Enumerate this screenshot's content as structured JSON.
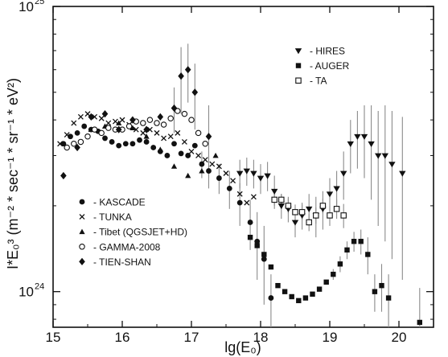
{
  "chart_data": {
    "type": "scatter",
    "xlabel": "lg(E₀)",
    "ylabel": "I*E₀³ (m⁻² * sec⁻¹ * sr⁻¹ * eV²)",
    "xlim": [
      15,
      20.5
    ],
    "ylim": [
      7.5e+23,
      1e+25
    ],
    "yscale": "log",
    "xticks": [
      "15",
      "16",
      "17",
      "18",
      "19",
      "20"
    ],
    "yticks": [
      {
        "base": "10",
        "exp": "24",
        "value": 1e+24
      },
      {
        "base": "10",
        "exp": "25",
        "value": 1e+25
      }
    ],
    "grid": false,
    "series": [
      {
        "name": "- KASCADE",
        "marker": "circle-filled",
        "points": [
          [
            15.15,
            3.3e+24
          ],
          [
            15.25,
            3.5e+24
          ],
          [
            15.35,
            3.6e+24
          ],
          [
            15.45,
            3.8e+24
          ],
          [
            15.55,
            3.7e+24
          ],
          [
            15.65,
            3.65e+24
          ],
          [
            15.75,
            3.45e+24
          ],
          [
            15.85,
            3.35e+24
          ],
          [
            15.95,
            3.25e+24
          ],
          [
            16.05,
            3.3e+24
          ],
          [
            16.15,
            3.3e+24
          ],
          [
            16.25,
            3.4e+24
          ],
          [
            16.35,
            3.35e+24
          ],
          [
            16.45,
            3.2e+24
          ],
          [
            16.55,
            3.1e+24
          ],
          [
            16.65,
            3e+24
          ],
          [
            16.75,
            3.3e+24
          ],
          [
            16.85,
            3.05e+24
          ],
          [
            16.95,
            3e+24
          ],
          [
            17.05,
            3.25e+24
          ],
          [
            17.15,
            2.8e+24
          ],
          [
            17.25,
            2.65e+24
          ],
          [
            17.4,
            2.5e+24
          ],
          [
            17.55,
            2.3e+24
          ],
          [
            17.7,
            2.05e+24
          ],
          [
            17.85,
            1.75e+24
          ],
          [
            17.95,
            1.5e+24
          ],
          [
            18.05,
            1.3e+24
          ],
          [
            18.15,
            9.5e+23
          ]
        ],
        "errors": [
          0,
          0,
          0,
          0,
          0,
          0,
          0,
          0,
          0,
          0,
          0,
          0,
          0,
          0,
          0,
          0,
          0,
          0,
          0,
          0,
          3e+23,
          3.5e+23,
          3e+23,
          3.5e+23,
          3.5e+23,
          3.5e+23,
          4e+23,
          4e+23,
          2e+23
        ]
      },
      {
        "name": "- TUNKA",
        "marker": "cross",
        "points": [
          [
            15.1,
            3.3e+24
          ],
          [
            15.2,
            3.55e+24
          ],
          [
            15.3,
            3.9e+24
          ],
          [
            15.4,
            4.1e+24
          ],
          [
            15.5,
            4.2e+24
          ],
          [
            15.6,
            4.1e+24
          ],
          [
            15.7,
            4.05e+24
          ],
          [
            15.8,
            3.9e+24
          ],
          [
            15.9,
            3.95e+24
          ],
          [
            16.0,
            4e+24
          ],
          [
            16.1,
            3.85e+24
          ],
          [
            16.2,
            3.7e+24
          ],
          [
            16.3,
            3.6e+24
          ],
          [
            16.4,
            3.7e+24
          ],
          [
            16.5,
            3.6e+24
          ],
          [
            16.6,
            3.45e+24
          ],
          [
            16.7,
            3.5e+24
          ],
          [
            16.8,
            3.6e+24
          ],
          [
            16.9,
            3.35e+24
          ],
          [
            17.0,
            3.1e+24
          ],
          [
            17.1,
            3e+24
          ],
          [
            17.2,
            2.9e+24
          ],
          [
            17.3,
            2.8e+24
          ],
          [
            17.4,
            2.75e+24
          ],
          [
            17.5,
            2.6e+24
          ],
          [
            17.6,
            2.45e+24
          ],
          [
            17.7,
            2.2e+24
          ],
          [
            17.8,
            2.05e+24
          ],
          [
            17.9,
            2.15e+24
          ]
        ]
      },
      {
        "name": "- Tibet (QGSJET+HD)",
        "marker": "triangle-up-filled",
        "points": [
          [
            15.55,
            3.7e+24
          ],
          [
            15.75,
            3.8e+24
          ],
          [
            15.95,
            3.9e+24
          ],
          [
            16.15,
            3.75e+24
          ],
          [
            16.35,
            3.5e+24
          ],
          [
            16.55,
            3.15e+24
          ],
          [
            16.75,
            2.75e+24
          ],
          [
            16.95,
            2.55e+24
          ],
          [
            17.15,
            2.65e+24
          ],
          [
            17.35,
            3e+24
          ]
        ]
      },
      {
        "name": "- GAMMA-2008",
        "marker": "circle-open",
        "points": [
          [
            15.2,
            3.2e+24
          ],
          [
            15.3,
            3.3e+24
          ],
          [
            15.4,
            3.35e+24
          ],
          [
            15.5,
            3.5e+24
          ],
          [
            15.6,
            3.7e+24
          ],
          [
            15.7,
            3.6e+24
          ],
          [
            15.8,
            3.75e+24
          ],
          [
            15.9,
            3.7e+24
          ],
          [
            16.0,
            3.7e+24
          ],
          [
            16.1,
            3.8e+24
          ],
          [
            16.2,
            3.95e+24
          ],
          [
            16.3,
            3.9e+24
          ],
          [
            16.4,
            4e+24
          ],
          [
            16.5,
            3.9e+24
          ],
          [
            16.6,
            3.85e+24
          ],
          [
            16.7,
            4.05e+24
          ],
          [
            16.8,
            4.3e+24
          ],
          [
            16.9,
            4.2e+24
          ],
          [
            17.0,
            4e+24
          ],
          [
            17.1,
            3.6e+24
          ],
          [
            17.2,
            3.3e+24
          ]
        ]
      },
      {
        "name": "- TIEN-SHAN",
        "marker": "diamond-filled",
        "points": [
          [
            15.15,
            2.55e+24
          ],
          [
            15.35,
            3.2e+24
          ],
          [
            15.55,
            4.1e+24
          ],
          [
            15.75,
            4.2e+24
          ],
          [
            15.95,
            3.7e+24
          ],
          [
            16.15,
            4e+24
          ],
          [
            16.35,
            3.7e+24
          ],
          [
            16.55,
            4.1e+24
          ],
          [
            16.75,
            4.4e+24
          ],
          [
            16.85,
            5.7e+24
          ],
          [
            16.95,
            6e+24
          ],
          [
            17.05,
            5e+24
          ],
          [
            17.25,
            3.5e+24
          ]
        ],
        "errors": [
          0,
          0,
          0,
          0,
          0,
          0,
          0,
          0,
          8e+23,
          1.5e+24,
          1.4e+24,
          1.3e+24,
          1e+24
        ]
      },
      {
        "name": "- HIRES",
        "marker": "triangle-down-filled",
        "points": [
          [
            17.7,
            2.6e+24
          ],
          [
            17.8,
            2.65e+24
          ],
          [
            17.9,
            2.6e+24
          ],
          [
            18.0,
            2.5e+24
          ],
          [
            18.1,
            2.55e+24
          ],
          [
            18.2,
            2.25e+24
          ],
          [
            18.3,
            2e+24
          ],
          [
            18.4,
            1.95e+24
          ],
          [
            18.5,
            1.75e+24
          ],
          [
            18.6,
            1.85e+24
          ],
          [
            18.7,
            1.95e+24
          ],
          [
            18.8,
            1.85e+24
          ],
          [
            18.9,
            1.95e+24
          ],
          [
            19.0,
            2.2e+24
          ],
          [
            19.1,
            2.3e+24
          ],
          [
            19.2,
            2.6e+24
          ],
          [
            19.3,
            3.3e+24
          ],
          [
            19.4,
            3.5e+24
          ],
          [
            19.5,
            3.5e+24
          ],
          [
            19.6,
            3.3e+24
          ],
          [
            19.7,
            3e+24
          ],
          [
            19.8,
            3e+24
          ],
          [
            19.9,
            2.8e+24
          ],
          [
            20.05,
            2.6e+24
          ]
        ],
        "errors": [
          3e+23,
          3e+23,
          3e+23,
          3e+23,
          3e+23,
          3e+23,
          2e+23,
          2e+23,
          2e+23,
          2e+23,
          2.5e+23,
          3e+23,
          3e+23,
          3e+23,
          3.5e+23,
          5e+23,
          7e+23,
          8e+23,
          1e+24,
          1.2e+24,
          1.3e+24,
          1.5e+24,
          1.5e+24,
          1.5e+24
        ]
      },
      {
        "name": "- AUGER",
        "marker": "square-filled",
        "points": [
          [
            17.85,
            1.55e+24
          ],
          [
            17.95,
            1.45e+24
          ],
          [
            18.05,
            1.35e+24
          ],
          [
            18.15,
            1.22e+24
          ],
          [
            18.25,
            1.05e+24
          ],
          [
            18.35,
            1e+24
          ],
          [
            18.45,
            9.6e+23
          ],
          [
            18.55,
            9.3e+23
          ],
          [
            18.65,
            9.5e+23
          ],
          [
            18.75,
            9.8e+23
          ],
          [
            18.85,
            1.02e+24
          ],
          [
            18.95,
            1.08e+24
          ],
          [
            19.05,
            1.15e+24
          ],
          [
            19.15,
            1.25e+24
          ],
          [
            19.25,
            1.4e+24
          ],
          [
            19.35,
            1.5e+24
          ],
          [
            19.45,
            1.5e+24
          ],
          [
            19.55,
            1.35e+24
          ],
          [
            19.65,
            1e+24
          ],
          [
            19.75,
            1.05e+24
          ],
          [
            19.85,
            9.5e+23
          ],
          [
            20.3,
            7.8e+23
          ]
        ],
        "errors": [
          0,
          0,
          0,
          0,
          0,
          0,
          0,
          0,
          0,
          0,
          0,
          0,
          5e+22,
          8e+22,
          1e+23,
          1.2e+23,
          1.5e+23,
          2e+23,
          1.5e+23,
          2e+23,
          2e+23,
          2.5e+23
        ]
      },
      {
        "name": "- TA",
        "marker": "square-open",
        "points": [
          [
            18.2,
            2.1e+24
          ],
          [
            18.3,
            2.1e+24
          ],
          [
            18.4,
            2e+24
          ],
          [
            18.5,
            1.9e+24
          ],
          [
            18.6,
            1.9e+24
          ],
          [
            18.7,
            1.75e+24
          ],
          [
            18.8,
            1.85e+24
          ],
          [
            18.9,
            2e+24
          ],
          [
            19.0,
            1.85e+24
          ],
          [
            19.1,
            1.95e+24
          ],
          [
            19.2,
            1.85e+24
          ]
        ],
        "errors": [
          1e+23,
          1e+23,
          1.2e+23,
          1.2e+23,
          1.2e+23,
          1.2e+23,
          1.2e+23,
          1.2e+23,
          1.5e+23,
          1.5e+23,
          1.8e+23
        ]
      }
    ],
    "legends": [
      {
        "placement": "bottom-left",
        "series": [
          "- KASCADE",
          "- TUNKA",
          "- Tibet (QGSJET+HD)",
          "- GAMMA-2008",
          "- TIEN-SHAN"
        ]
      },
      {
        "placement": "top-right",
        "series": [
          "- HIRES",
          "- AUGER",
          "- TA"
        ]
      }
    ]
  }
}
